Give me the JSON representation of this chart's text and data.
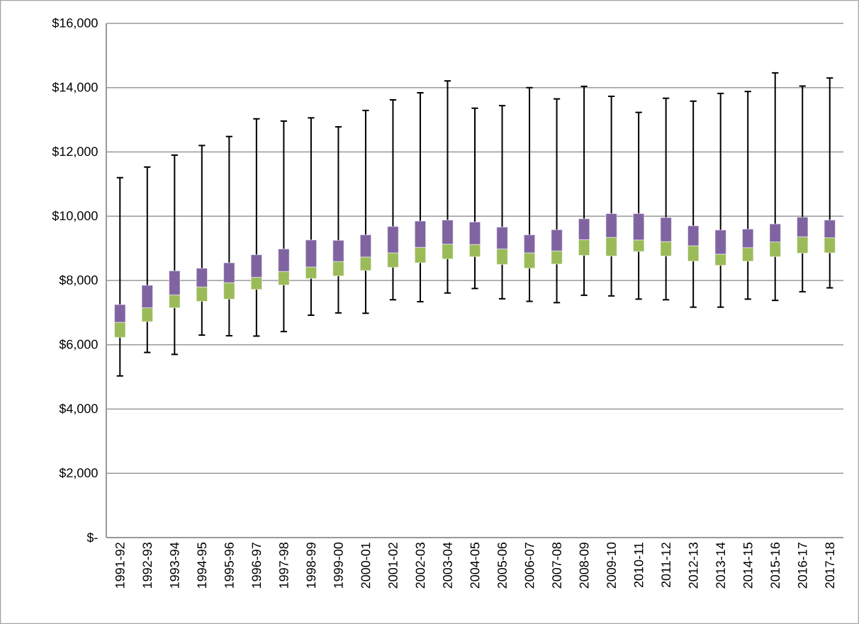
{
  "chart_data": {
    "type": "box",
    "categories": [
      "1991-92",
      "1992-93",
      "1993-94",
      "1994-95",
      "1995-96",
      "1996-97",
      "1997-98",
      "1998-99",
      "1999-00",
      "2000-01",
      "2001-02",
      "2002-03",
      "2003-04",
      "2004-05",
      "2005-06",
      "2006-07",
      "2007-08",
      "2008-09",
      "2009-10",
      "2010-11",
      "2011-12",
      "2012-13",
      "2013-14",
      "2014-15",
      "2015-16",
      "2016-17",
      "2017-18"
    ],
    "boxes": [
      {
        "low": 5030,
        "q1": 6230,
        "median": 6700,
        "q3": 7250,
        "high": 11200
      },
      {
        "low": 5760,
        "q1": 6720,
        "median": 7150,
        "q3": 7850,
        "high": 11530
      },
      {
        "low": 5700,
        "q1": 7150,
        "median": 7550,
        "q3": 8300,
        "high": 11900
      },
      {
        "low": 6300,
        "q1": 7350,
        "median": 7800,
        "q3": 8380,
        "high": 12200
      },
      {
        "low": 6280,
        "q1": 7420,
        "median": 7930,
        "q3": 8550,
        "high": 12480
      },
      {
        "low": 6270,
        "q1": 7720,
        "median": 8100,
        "q3": 8800,
        "high": 13030
      },
      {
        "low": 6410,
        "q1": 7860,
        "median": 8280,
        "q3": 8980,
        "high": 12960
      },
      {
        "low": 6920,
        "q1": 8060,
        "median": 8420,
        "q3": 9260,
        "high": 13060
      },
      {
        "low": 6990,
        "q1": 8140,
        "median": 8590,
        "q3": 9250,
        "high": 12780
      },
      {
        "low": 6980,
        "q1": 8310,
        "median": 8730,
        "q3": 9420,
        "high": 13290
      },
      {
        "low": 7400,
        "q1": 8410,
        "median": 8860,
        "q3": 9680,
        "high": 13620
      },
      {
        "low": 7340,
        "q1": 8550,
        "median": 9030,
        "q3": 9850,
        "high": 13840
      },
      {
        "low": 7610,
        "q1": 8670,
        "median": 9130,
        "q3": 9880,
        "high": 14210
      },
      {
        "low": 7750,
        "q1": 8740,
        "median": 9120,
        "q3": 9820,
        "high": 13360
      },
      {
        "low": 7430,
        "q1": 8500,
        "median": 8980,
        "q3": 9660,
        "high": 13440
      },
      {
        "low": 7350,
        "q1": 8380,
        "median": 8860,
        "q3": 9420,
        "high": 14000
      },
      {
        "low": 7310,
        "q1": 8510,
        "median": 8920,
        "q3": 9580,
        "high": 13650
      },
      {
        "low": 7540,
        "q1": 8780,
        "median": 9270,
        "q3": 9920,
        "high": 14040
      },
      {
        "low": 7520,
        "q1": 8760,
        "median": 9340,
        "q3": 10080,
        "high": 13730
      },
      {
        "low": 7420,
        "q1": 8900,
        "median": 9260,
        "q3": 10080,
        "high": 13230
      },
      {
        "low": 7400,
        "q1": 8760,
        "median": 9210,
        "q3": 9960,
        "high": 13670
      },
      {
        "low": 7170,
        "q1": 8600,
        "median": 9080,
        "q3": 9700,
        "high": 13580
      },
      {
        "low": 7170,
        "q1": 8470,
        "median": 8820,
        "q3": 9570,
        "high": 13820
      },
      {
        "low": 7420,
        "q1": 8600,
        "median": 9020,
        "q3": 9600,
        "high": 13880
      },
      {
        "low": 7380,
        "q1": 8740,
        "median": 9200,
        "q3": 9760,
        "high": 14460
      },
      {
        "low": 7650,
        "q1": 8850,
        "median": 9360,
        "q3": 9970,
        "high": 14050
      },
      {
        "low": 7770,
        "q1": 8860,
        "median": 9330,
        "q3": 9880,
        "high": 14300
      }
    ],
    "color": "#9bbb59",
    "ylim": [
      0,
      16000
    ],
    "yticks": [
      {
        "value": 0,
        "label": "$-"
      },
      {
        "value": 2000,
        "label": "$2,000"
      },
      {
        "value": 4000,
        "label": "$4,000"
      },
      {
        "value": 6000,
        "label": "$6,000"
      },
      {
        "value": 8000,
        "label": "$8,000"
      },
      {
        "value": 10000,
        "label": "$10,000"
      },
      {
        "value": 12000,
        "label": "$12,000"
      },
      {
        "value": 14000,
        "label": "$14,000"
      },
      {
        "value": 16000,
        "label": "$16,000"
      }
    ],
    "grid": "y"
  }
}
